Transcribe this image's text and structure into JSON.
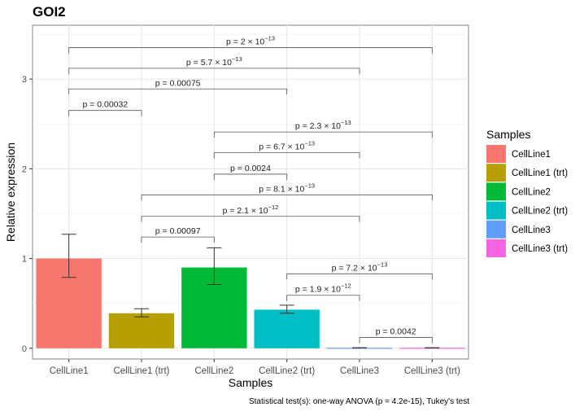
{
  "chart_data": {
    "type": "bar",
    "title": "GOI2",
    "xlabel": "Samples",
    "ylabel": "Relative expression",
    "categories": [
      "CellLine1",
      "CellLine1 (trt)",
      "CellLine2",
      "CellLine2 (trt)",
      "CellLine3",
      "CellLine3 (trt)"
    ],
    "values": [
      1.0,
      0.39,
      0.9,
      0.43,
      0.005,
      0.005
    ],
    "error_low": [
      0.79,
      0.35,
      0.71,
      0.39,
      0.004,
      0.004
    ],
    "error_high": [
      1.27,
      0.44,
      1.12,
      0.48,
      0.006,
      0.006
    ],
    "colors": [
      "#F8766D",
      "#B79F00",
      "#00BA38",
      "#00BFC4",
      "#619CFF",
      "#F564E3"
    ],
    "yticks": [
      0,
      1,
      2,
      3
    ],
    "ylim": [
      -0.12,
      3.6
    ],
    "grid": true,
    "legend": {
      "title": "Samples",
      "position": "right",
      "entries": [
        "CellLine1",
        "CellLine1 (trt)",
        "CellLine2",
        "CellLine2 (trt)",
        "CellLine3",
        "CellLine3 (trt)"
      ]
    },
    "comparisons": [
      {
        "from": 0,
        "to": 1,
        "y": 2.65,
        "label": "p = 0.00032"
      },
      {
        "from": 0,
        "to": 3,
        "y": 2.89,
        "label": "p = 0.00075"
      },
      {
        "from": 0,
        "to": 4,
        "y": 3.12,
        "base": "p = 5.7 × 10",
        "exp": "−13"
      },
      {
        "from": 0,
        "to": 5,
        "y": 3.35,
        "base": "p = 2 × 10",
        "exp": "−13"
      },
      {
        "from": 1,
        "to": 2,
        "y": 1.24,
        "label": "p = 0.00097"
      },
      {
        "from": 1,
        "to": 4,
        "y": 1.47,
        "base": "p = 2.1 × 10",
        "exp": "−12"
      },
      {
        "from": 1,
        "to": 5,
        "y": 1.71,
        "base": "p = 8.1 × 10",
        "exp": "−13"
      },
      {
        "from": 2,
        "to": 3,
        "y": 1.94,
        "label": "p = 0.0024"
      },
      {
        "from": 2,
        "to": 4,
        "y": 2.18,
        "base": "p = 6.7 × 10",
        "exp": "−13"
      },
      {
        "from": 2,
        "to": 5,
        "y": 2.41,
        "base": "p = 2.3 × 10",
        "exp": "−13"
      },
      {
        "from": 3,
        "to": 4,
        "y": 0.59,
        "base": "p = 1.9 × 10",
        "exp": "−12"
      },
      {
        "from": 3,
        "to": 5,
        "y": 0.83,
        "base": "p = 7.2 × 10",
        "exp": "−13"
      },
      {
        "from": 4,
        "to": 5,
        "y": 0.12,
        "label": "p = 0.0042"
      }
    ],
    "caption": "Statistical test(s): one-way ANOVA (p = 4.2e-15), Tukey's test"
  }
}
